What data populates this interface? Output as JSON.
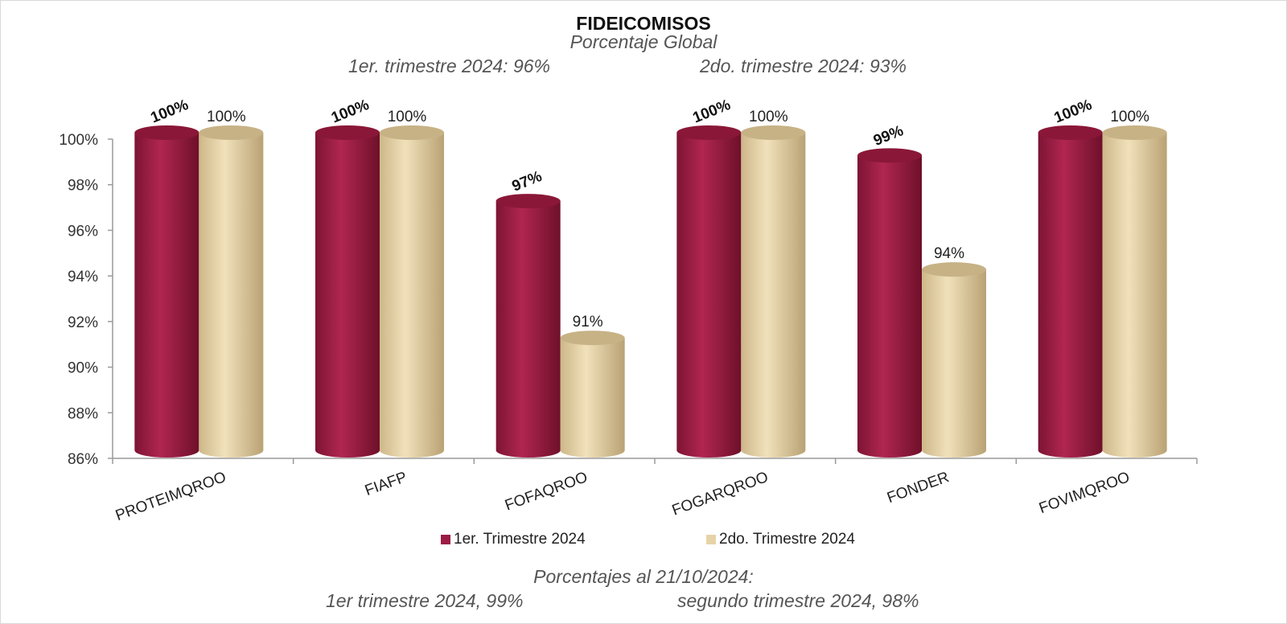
{
  "chart_data": {
    "type": "bar",
    "title": "FIDEICOMISOS",
    "subtitle": "Porcentaje Global",
    "summary_left": "1er. trimestre 2024: 96%",
    "summary_right": "2do. trimestre 2024: 93%",
    "categories": [
      "PROTEIMQROO",
      "FIAFP",
      "FOFAQROO",
      "FOGARQROO",
      "FONDER",
      "FOVIMQROO"
    ],
    "series": [
      {
        "name": "1er. Trimestre 2024",
        "values": [
          100,
          100,
          97,
          100,
          99,
          100
        ],
        "labels": [
          "100%",
          "100%",
          "97%",
          "100%",
          "99%",
          "100%"
        ],
        "color": "#9b1c44"
      },
      {
        "name": "2do. Trimestre 2024",
        "values": [
          100,
          100,
          91,
          100,
          94,
          100
        ],
        "labels": [
          "100%",
          "100%",
          "91%",
          "100%",
          "94%",
          "100%"
        ],
        "color": "#e6d3a8"
      }
    ],
    "ylim": [
      86,
      100
    ],
    "yticks": [
      "86%",
      "88%",
      "90%",
      "92%",
      "94%",
      "96%",
      "98%",
      "100%"
    ],
    "grid": false,
    "legend_position": "bottom",
    "footnote_line1": "Porcentajes al 21/10/2024:",
    "footnote_left": "1er trimestre  2024,  99%",
    "footnote_right": "segundo trimestre 2024, 98%"
  }
}
